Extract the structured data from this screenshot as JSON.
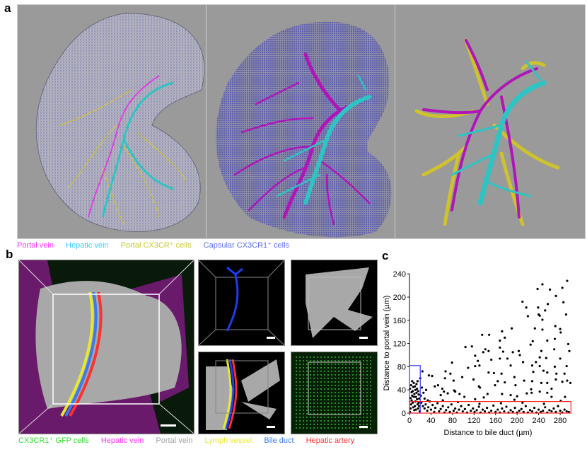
{
  "panel_a": {
    "label": "a",
    "legend": [
      {
        "text": "Portal vein",
        "color": "#ff33ff"
      },
      {
        "text": "Hepatic vein",
        "color": "#33ccff"
      },
      {
        "text": "Portal CX3CR⁺ cells",
        "color": "#c8c832"
      },
      {
        "text": "Capsular CX3CR1⁺ cells",
        "color": "#5a6cf0"
      }
    ]
  },
  "panel_b": {
    "label": "b",
    "legend": [
      {
        "text": "CX3CR1⁺ GFP cells",
        "color": "#33dd33"
      },
      {
        "text": "Hepatic vein",
        "color": "#ff33ff"
      },
      {
        "text": "Portal vein",
        "color": "#a0a0a0"
      },
      {
        "text": "Lymph vessel",
        "color": "#e8e830"
      },
      {
        "text": "Bile duct",
        "color": "#3a7af0"
      },
      {
        "text": "Hepatic artery",
        "color": "#ff3030"
      }
    ]
  },
  "panel_c": {
    "label": "c"
  },
  "colors": {
    "portal": "#b015b8",
    "hepatic": "#2ec4c4",
    "cx3cr": "#d4c622",
    "capsule": "#2a2ab0",
    "render_bg": "#9a9a9a"
  },
  "chart_data": {
    "type": "scatter",
    "xlabel": "Distance to bile duct (µm)",
    "ylabel": "Distance to portal vein (µm)",
    "xlim": [
      0,
      300
    ],
    "ylim": [
      0,
      240
    ],
    "xticks": [
      0,
      40,
      80,
      120,
      160,
      200,
      240,
      280
    ],
    "yticks": [
      0,
      40,
      80,
      120,
      160,
      200,
      240
    ],
    "grid": false,
    "highlight_boxes": [
      {
        "color": "#3333ff",
        "x": [
          0,
          20
        ],
        "y": [
          0,
          82
        ]
      },
      {
        "color": "#ff2020",
        "x": [
          0,
          300
        ],
        "y": [
          0,
          20
        ]
      }
    ],
    "points": [
      [
        293,
        228
      ],
      [
        284,
        216
      ],
      [
        247,
        222
      ],
      [
        238,
        214
      ],
      [
        261,
        213
      ],
      [
        272,
        202
      ],
      [
        210,
        192
      ],
      [
        217,
        182
      ],
      [
        239,
        182
      ],
      [
        286,
        191
      ],
      [
        257,
        188
      ],
      [
        252,
        177
      ],
      [
        220,
        167
      ],
      [
        240,
        170
      ],
      [
        242,
        168
      ],
      [
        247,
        161
      ],
      [
        291,
        170
      ],
      [
        271,
        150
      ],
      [
        280,
        145
      ],
      [
        281,
        139
      ],
      [
        247,
        144
      ],
      [
        190,
        146
      ],
      [
        233,
        146
      ],
      [
        172,
        141
      ],
      [
        148,
        135
      ],
      [
        135,
        135
      ],
      [
        168,
        125
      ],
      [
        177,
        130
      ],
      [
        229,
        124
      ],
      [
        256,
        125
      ],
      [
        295,
        119
      ],
      [
        270,
        128
      ],
      [
        104,
        114
      ],
      [
        116,
        115
      ],
      [
        122,
        99
      ],
      [
        141,
        110
      ],
      [
        137,
        105
      ],
      [
        147,
        107
      ],
      [
        168,
        113
      ],
      [
        174,
        106
      ],
      [
        192,
        105
      ],
      [
        203,
        107
      ],
      [
        225,
        118
      ],
      [
        245,
        107
      ],
      [
        242,
        96
      ],
      [
        269,
        110
      ],
      [
        297,
        107
      ],
      [
        127,
        90
      ],
      [
        130,
        82
      ],
      [
        122,
        81
      ],
      [
        152,
        92
      ],
      [
        168,
        94
      ],
      [
        182,
        94
      ],
      [
        211,
        88
      ],
      [
        228,
        82
      ],
      [
        242,
        81
      ],
      [
        254,
        95
      ],
      [
        270,
        80
      ],
      [
        280,
        94
      ],
      [
        292,
        81
      ],
      [
        79,
        87
      ],
      [
        109,
        78
      ],
      [
        147,
        70
      ],
      [
        157,
        69
      ],
      [
        171,
        68
      ],
      [
        188,
        82
      ],
      [
        205,
        100
      ],
      [
        235,
        88
      ],
      [
        230,
        71
      ],
      [
        249,
        73
      ],
      [
        256,
        70
      ],
      [
        273,
        68
      ],
      [
        288,
        68
      ],
      [
        67,
        72
      ],
      [
        66,
        60
      ],
      [
        76,
        68
      ],
      [
        82,
        56
      ],
      [
        98,
        62
      ],
      [
        83,
        39
      ],
      [
        85,
        37
      ],
      [
        119,
        58
      ],
      [
        129,
        46
      ],
      [
        131,
        44
      ],
      [
        164,
        55
      ],
      [
        177,
        53
      ],
      [
        159,
        48
      ],
      [
        195,
        62
      ],
      [
        197,
        48
      ],
      [
        213,
        56
      ],
      [
        228,
        55
      ],
      [
        226,
        41
      ],
      [
        245,
        52
      ],
      [
        256,
        52
      ],
      [
        264,
        42
      ],
      [
        272,
        58
      ],
      [
        293,
        56
      ],
      [
        299,
        52
      ],
      [
        284,
        54
      ],
      [
        36,
        65
      ],
      [
        42,
        64
      ],
      [
        47,
        46
      ],
      [
        53,
        48
      ],
      [
        61,
        42
      ],
      [
        58,
        31
      ],
      [
        64,
        37
      ],
      [
        71,
        34
      ],
      [
        93,
        33
      ],
      [
        102,
        28
      ],
      [
        122,
        24
      ],
      [
        138,
        27
      ],
      [
        145,
        33
      ],
      [
        172,
        33
      ],
      [
        188,
        31
      ],
      [
        195,
        23
      ],
      [
        200,
        29
      ],
      [
        218,
        34
      ],
      [
        227,
        35
      ],
      [
        242,
        37
      ],
      [
        256,
        35
      ],
      [
        264,
        28
      ],
      [
        281,
        21
      ],
      [
        289,
        28
      ],
      [
        24,
        72
      ],
      [
        22,
        18
      ],
      [
        25,
        12
      ],
      [
        28,
        8
      ],
      [
        30,
        15
      ],
      [
        33,
        4
      ],
      [
        35,
        10
      ],
      [
        38,
        20
      ],
      [
        40,
        6
      ],
      [
        43,
        14
      ],
      [
        46,
        2
      ],
      [
        48,
        9
      ],
      [
        52,
        17
      ],
      [
        55,
        3
      ],
      [
        58,
        7
      ],
      [
        62,
        12
      ],
      [
        65,
        1
      ],
      [
        68,
        5
      ],
      [
        72,
        10
      ],
      [
        75,
        2
      ],
      [
        78,
        15
      ],
      [
        82,
        4
      ],
      [
        85,
        8
      ],
      [
        88,
        1
      ],
      [
        92,
        6
      ],
      [
        96,
        12
      ],
      [
        99,
        3
      ],
      [
        103,
        7
      ],
      [
        107,
        1
      ],
      [
        110,
        14
      ],
      [
        114,
        4
      ],
      [
        118,
        8
      ],
      [
        121,
        2
      ],
      [
        125,
        5
      ],
      [
        129,
        11
      ],
      [
        132,
        1
      ],
      [
        136,
        6
      ],
      [
        140,
        3
      ],
      [
        144,
        9
      ],
      [
        148,
        1
      ],
      [
        152,
        4
      ],
      [
        156,
        13
      ],
      [
        160,
        2
      ],
      [
        164,
        6
      ],
      [
        168,
        1
      ],
      [
        172,
        8
      ],
      [
        176,
        3
      ],
      [
        180,
        11
      ],
      [
        184,
        1
      ],
      [
        188,
        5
      ],
      [
        192,
        2
      ],
      [
        196,
        9
      ],
      [
        200,
        1
      ],
      [
        204,
        4
      ],
      [
        208,
        7
      ],
      [
        212,
        2
      ],
      [
        216,
        12
      ],
      [
        220,
        1
      ],
      [
        224,
        5
      ],
      [
        228,
        3
      ],
      [
        232,
        9
      ],
      [
        236,
        1
      ],
      [
        240,
        6
      ],
      [
        244,
        2
      ],
      [
        248,
        4
      ],
      [
        252,
        10
      ],
      [
        256,
        1
      ],
      [
        260,
        5
      ],
      [
        264,
        3
      ],
      [
        268,
        8
      ],
      [
        272,
        2
      ],
      [
        276,
        12
      ],
      [
        280,
        4
      ],
      [
        284,
        1
      ],
      [
        288,
        6
      ],
      [
        292,
        3
      ],
      [
        296,
        2
      ],
      [
        62,
        22
      ],
      [
        90,
        19
      ],
      [
        130,
        16
      ],
      [
        170,
        17
      ],
      [
        210,
        18
      ],
      [
        250,
        16
      ],
      [
        1,
        2
      ],
      [
        2,
        8
      ],
      [
        3,
        15
      ],
      [
        4,
        22
      ],
      [
        5,
        30
      ],
      [
        6,
        38
      ],
      [
        7,
        45
      ],
      [
        8,
        52
      ],
      [
        9,
        5
      ],
      [
        10,
        12
      ],
      [
        11,
        20
      ],
      [
        12,
        28
      ],
      [
        13,
        35
      ],
      [
        14,
        42
      ],
      [
        15,
        55
      ],
      [
        16,
        8
      ],
      [
        17,
        18
      ],
      [
        18,
        25
      ],
      [
        19,
        3
      ],
      [
        3,
        48
      ],
      [
        5,
        55
      ],
      [
        7,
        10
      ],
      [
        9,
        33
      ],
      [
        11,
        40
      ],
      [
        13,
        50
      ],
      [
        15,
        15
      ],
      [
        17,
        32
      ],
      [
        2,
        26
      ],
      [
        4,
        36
      ],
      [
        6,
        18
      ],
      [
        8,
        28
      ],
      [
        10,
        46
      ],
      [
        12,
        6
      ],
      [
        14,
        24
      ],
      [
        16,
        38
      ],
      [
        18,
        12
      ],
      [
        1,
        42
      ],
      [
        20,
        60
      ],
      [
        21,
        30
      ],
      [
        23,
        44
      ],
      [
        26,
        35
      ],
      [
        28,
        25
      ],
      [
        31,
        40
      ],
      [
        34,
        22
      ]
    ]
  }
}
